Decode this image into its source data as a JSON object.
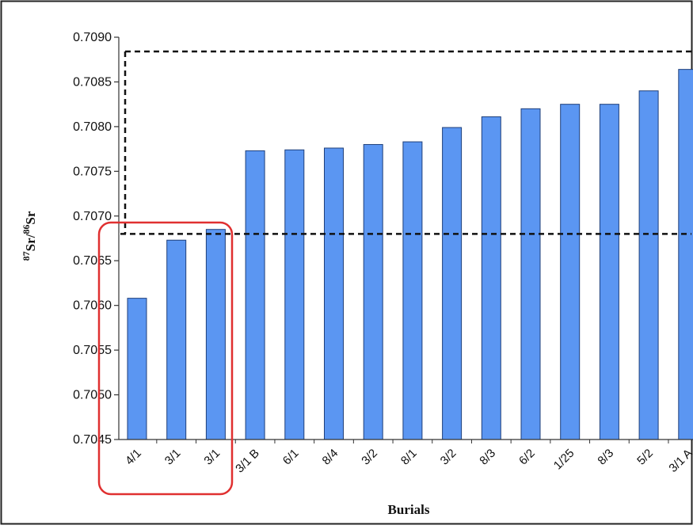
{
  "chart_data": {
    "type": "bar",
    "xlabel": "Burials",
    "ylabel_parts": [
      "87",
      "Sr/",
      "86",
      "Sr"
    ],
    "ylim": [
      0.7045,
      0.709
    ],
    "yticks": [
      "0.7045",
      "0.7050",
      "0.7055",
      "0.7060",
      "0.7065",
      "0.7070",
      "0.7075",
      "0.7080",
      "0.7085",
      "0.7090"
    ],
    "categories": [
      "4/1",
      "3/1",
      "3/1",
      "3/1 B",
      "6/1",
      "8/4",
      "3/2",
      "8/1",
      "3/2",
      "8/3",
      "6/2",
      "1/25",
      "8/3",
      "5/2",
      "3/1 A"
    ],
    "values": [
      0.70608,
      0.70673,
      0.70685,
      0.70773,
      0.70774,
      0.70776,
      0.7078,
      0.70783,
      0.70799,
      0.70811,
      0.7082,
      0.70825,
      0.70825,
      0.7084,
      0.70864
    ],
    "threshold_lower": 0.7068,
    "threshold_upper": 0.70884,
    "bar_color": "#5b96f2",
    "highlight_color": "#e03030",
    "grid": false,
    "legend": "none"
  }
}
